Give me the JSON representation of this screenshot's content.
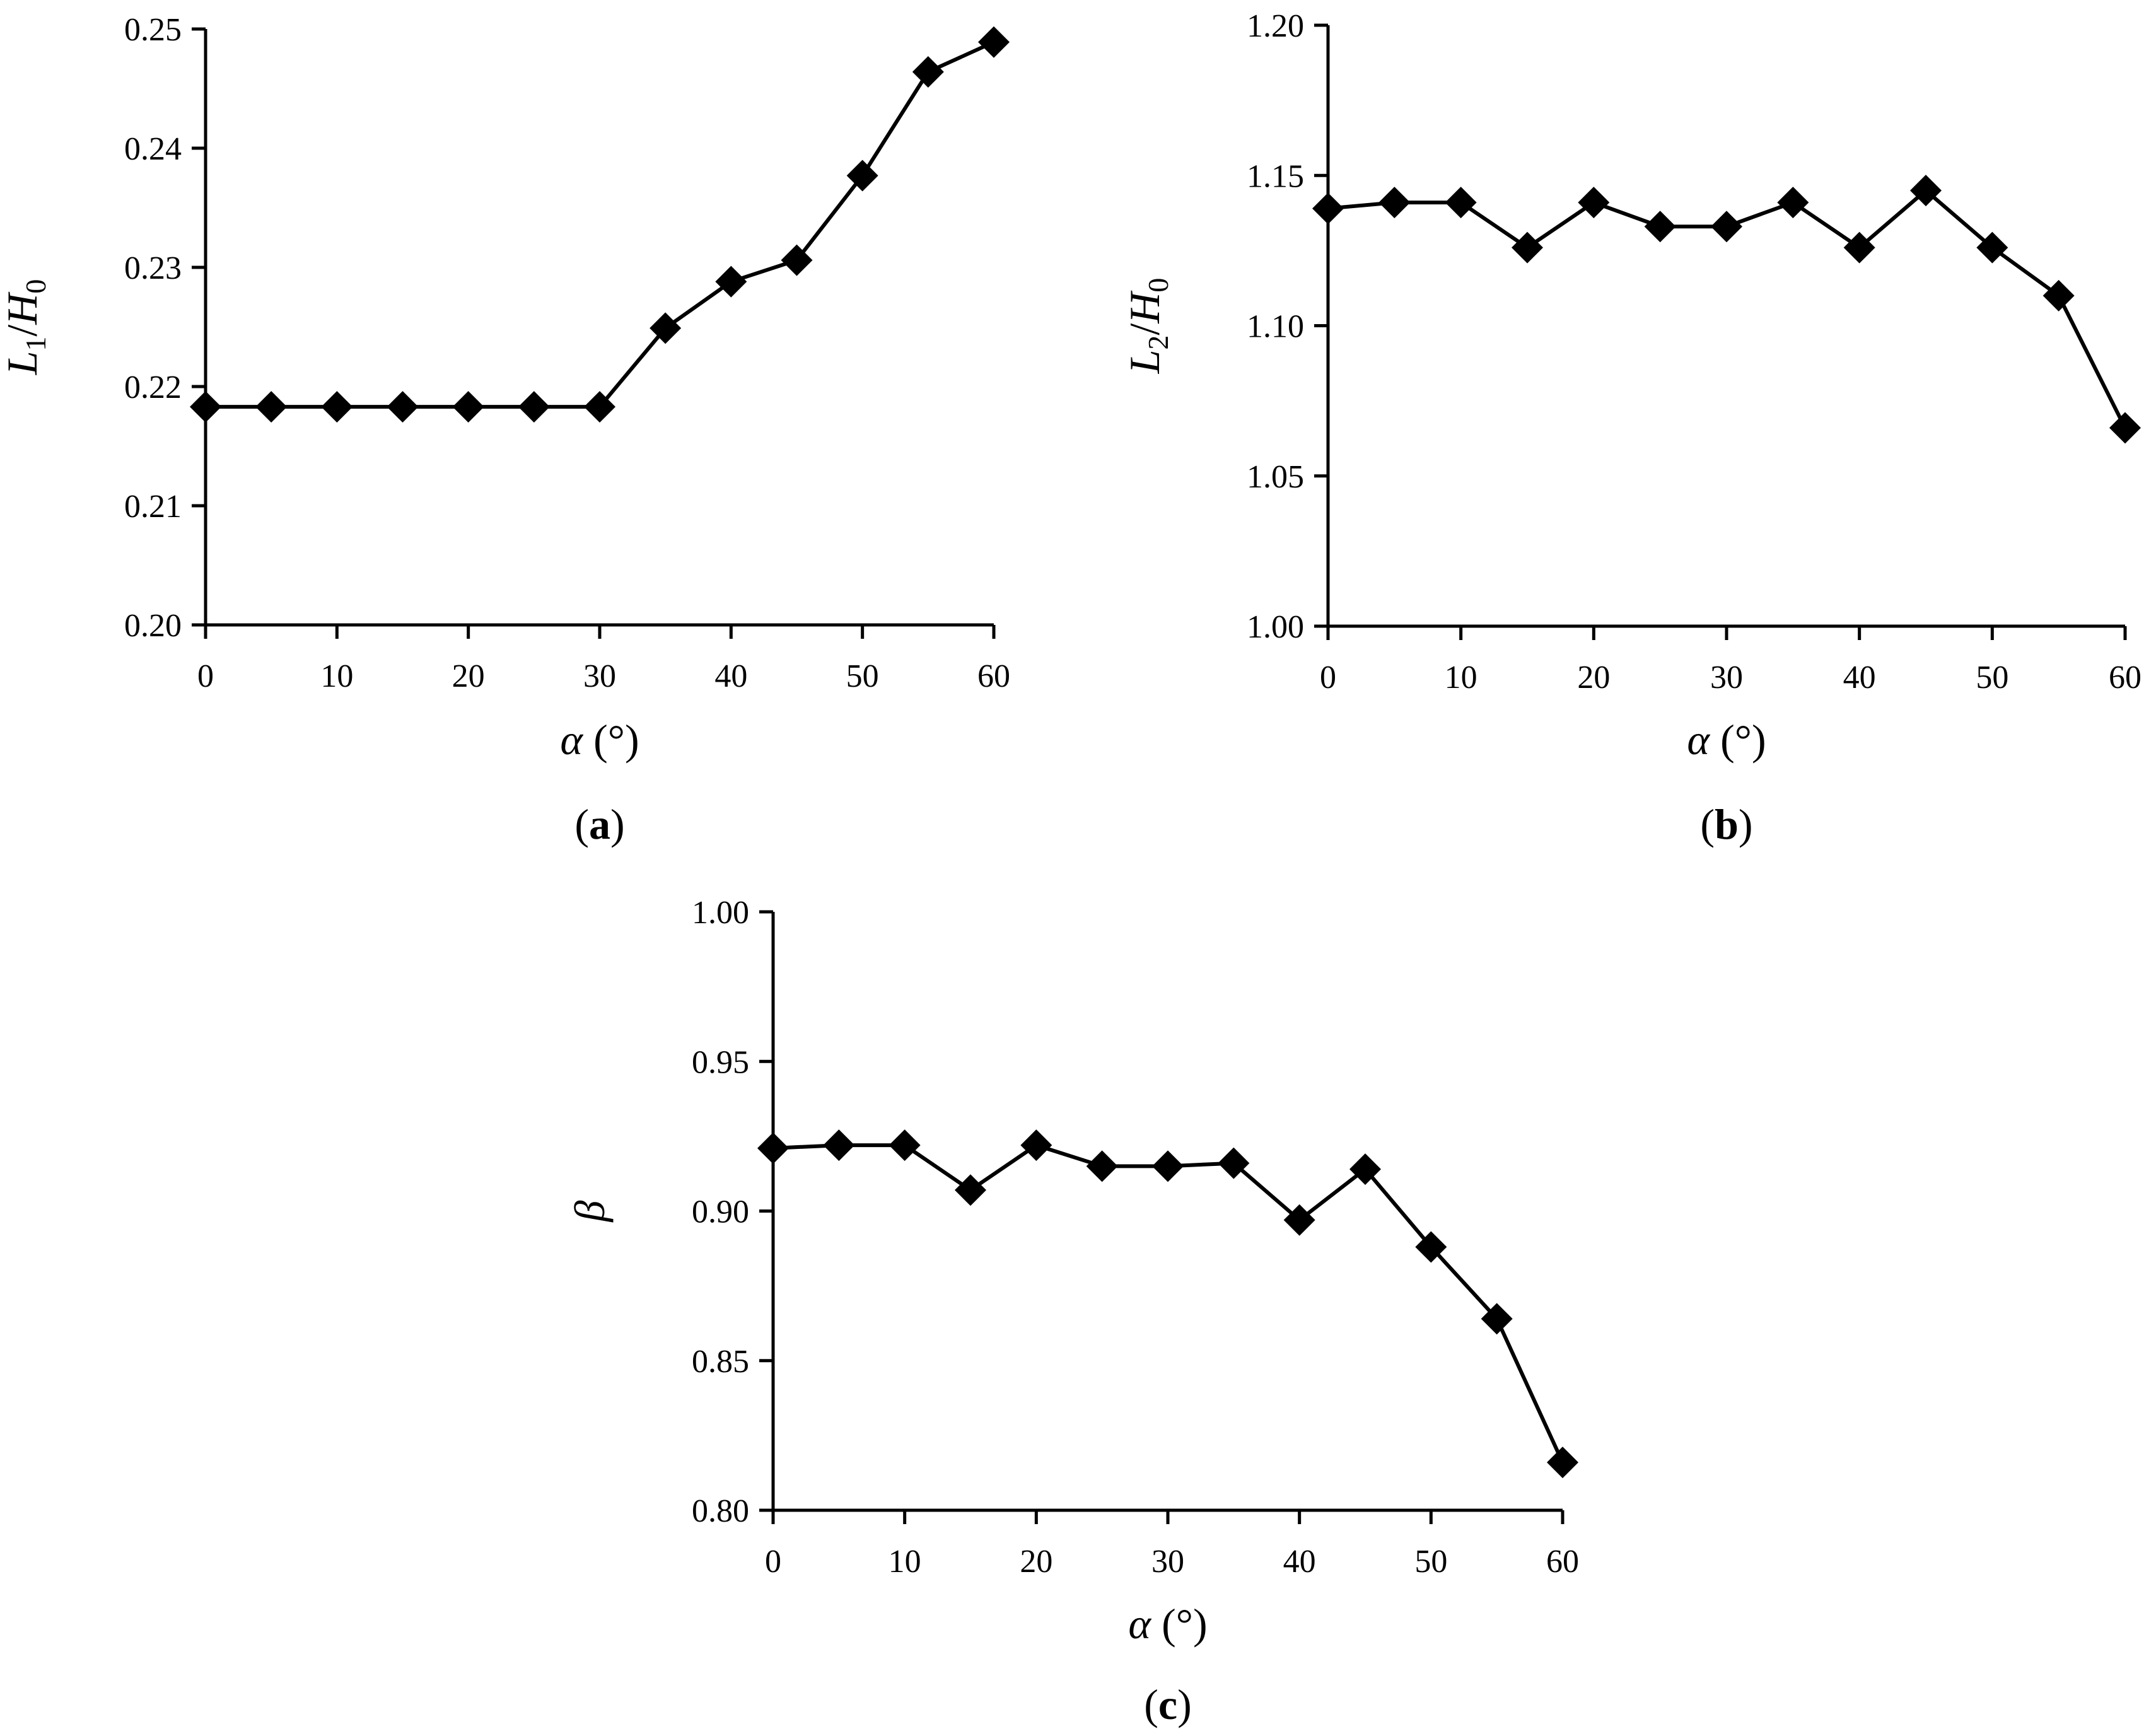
{
  "figure": {
    "background": "#ffffff",
    "marker_color": "#000000",
    "line_color": "#000000"
  },
  "chart_data": [
    {
      "id": "a",
      "type": "line",
      "panel_label": "a",
      "marker": "diamond",
      "xlabel": {
        "symbol": "α",
        "unit": "(°)"
      },
      "ylabel": {
        "base1": "L",
        "sub1": "1",
        "sep": "/",
        "base2": "H",
        "sub2": "0"
      },
      "xlim": [
        0,
        60
      ],
      "ylim": [
        0.2,
        0.25
      ],
      "x_ticks": [
        "0",
        "10",
        "20",
        "30",
        "40",
        "50",
        "60"
      ],
      "y_ticks": [
        "0.20",
        "0.21",
        "0.22",
        "0.23",
        "0.24",
        "0.25"
      ],
      "grid": false,
      "series": [
        {
          "x": [
            0,
            5,
            10,
            15,
            20,
            25,
            30,
            35,
            40,
            45,
            50,
            55,
            60
          ],
          "y": [
            0.2183,
            0.2183,
            0.2183,
            0.2183,
            0.2183,
            0.2183,
            0.2183,
            0.2249,
            0.2288,
            0.2306,
            0.2377,
            0.2464,
            0.2489
          ]
        }
      ]
    },
    {
      "id": "b",
      "type": "line",
      "panel_label": "b",
      "marker": "diamond",
      "xlabel": {
        "symbol": "α",
        "unit": "(°)"
      },
      "ylabel": {
        "base1": "L",
        "sub1": "2",
        "sep": "/",
        "base2": "H",
        "sub2": "0"
      },
      "xlim": [
        0,
        60
      ],
      "ylim": [
        1.0,
        1.2
      ],
      "x_ticks": [
        "0",
        "10",
        "20",
        "30",
        "40",
        "50",
        "60"
      ],
      "y_ticks": [
        "1.00",
        "1.05",
        "1.10",
        "1.15",
        "1.20"
      ],
      "grid": false,
      "series": [
        {
          "x": [
            0,
            5,
            10,
            15,
            20,
            25,
            30,
            35,
            40,
            45,
            50,
            55,
            60
          ],
          "y": [
            1.139,
            1.141,
            1.141,
            1.126,
            1.141,
            1.133,
            1.133,
            1.141,
            1.126,
            1.145,
            1.126,
            1.11,
            1.066
          ]
        }
      ]
    },
    {
      "id": "c",
      "type": "line",
      "panel_label": "c",
      "marker": "diamond",
      "xlabel": {
        "symbol": "α",
        "unit": "(°)"
      },
      "ylabel": {
        "symbol": "β"
      },
      "xlim": [
        0,
        60
      ],
      "ylim": [
        0.8,
        1.0
      ],
      "x_ticks": [
        "0",
        "10",
        "20",
        "30",
        "40",
        "50",
        "60"
      ],
      "y_ticks": [
        "0.80",
        "0.85",
        "0.90",
        "0.95",
        "1.00"
      ],
      "grid": false,
      "series": [
        {
          "x": [
            0,
            5,
            10,
            15,
            20,
            25,
            30,
            35,
            40,
            45,
            50,
            55,
            60
          ],
          "y": [
            0.921,
            0.922,
            0.922,
            0.907,
            0.922,
            0.915,
            0.915,
            0.916,
            0.897,
            0.914,
            0.888,
            0.864,
            0.816
          ]
        }
      ]
    }
  ]
}
